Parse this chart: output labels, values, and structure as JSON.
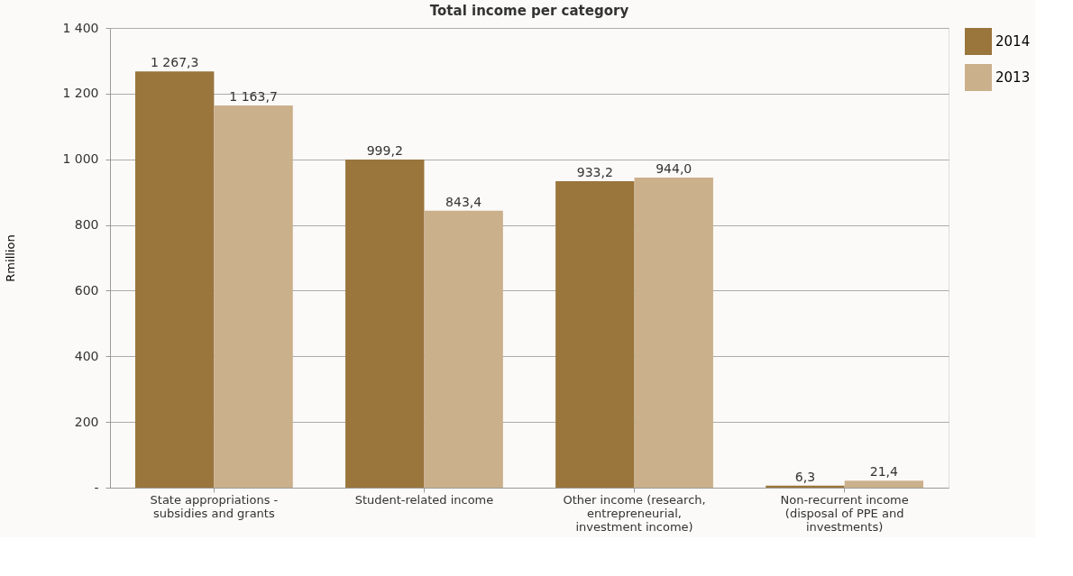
{
  "chart_data": {
    "type": "bar",
    "title": "Total income per category",
    "ylabel": "Rmillion",
    "categories": [
      "State appropriations - subsidies and grants",
      "Student-related income",
      "Other income (research, entrepreneurial, investment income)",
      "Non-recurrent income (disposal of PPE and investments)"
    ],
    "series": [
      {
        "name": "2014",
        "color": "#9a753c",
        "values": [
          1267.3,
          999.2,
          933.2,
          6.3
        ],
        "value_labels": [
          "1 267,3",
          "999,2",
          "933,2",
          "6,3"
        ]
      },
      {
        "name": "2013",
        "color": "#cbb08c",
        "values": [
          1163.7,
          843.4,
          944.0,
          21.4
        ],
        "value_labels": [
          "1 163,7",
          "843,4",
          "944,0",
          "21,4"
        ]
      }
    ],
    "ylim": [
      0,
      1400
    ],
    "yticks": [
      {
        "value": 0,
        "label": "-"
      },
      200,
      400,
      600,
      800,
      {
        "value": 1000,
        "label": "1 000"
      },
      {
        "value": 1200,
        "label": "1 200"
      },
      {
        "value": 1400,
        "label": "1 400"
      }
    ],
    "grid": "y",
    "legend": "top right"
  }
}
